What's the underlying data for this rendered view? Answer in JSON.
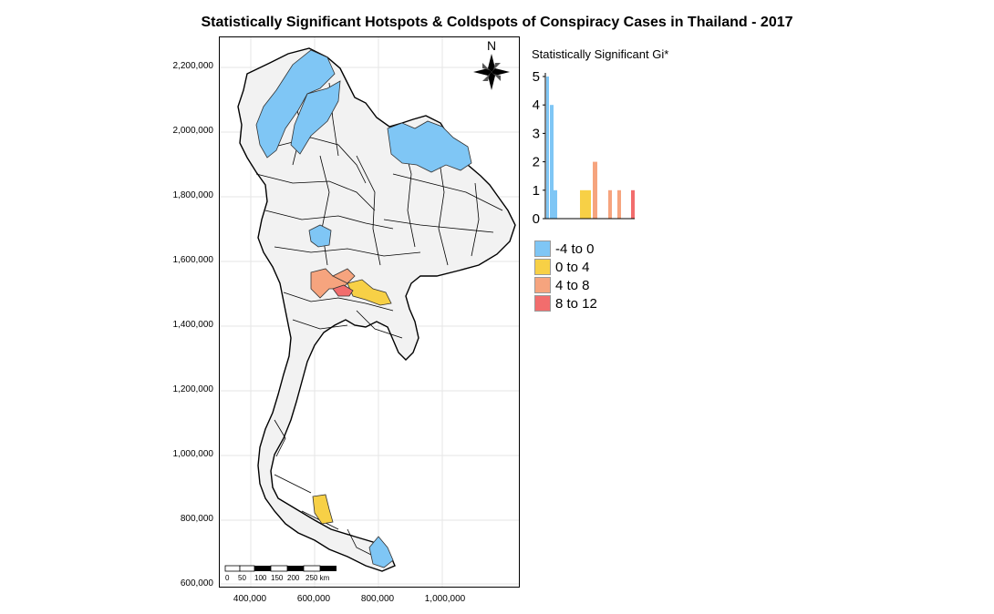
{
  "title": "Statistically Significant Hotspots & Coldspots of Conspiracy Cases in Thailand - 2017",
  "map": {
    "y_ticks": [
      "2,200,000",
      "2,000,000",
      "1,800,000",
      "1,600,000",
      "1,400,000",
      "1,200,000",
      "1,000,000",
      "800,000",
      "600,000"
    ],
    "x_ticks": [
      "400,000",
      "600,000",
      "800,000",
      "1,000,000"
    ],
    "north_label": "N",
    "scale_bar_labels": [
      "0",
      "50",
      "100",
      "150",
      "200",
      "250 km"
    ]
  },
  "histogram": {
    "title": "Statistically Significant Gi*",
    "y_ticks": [
      "0",
      "1",
      "2",
      "3",
      "4",
      "5"
    ]
  },
  "legend": {
    "items": [
      {
        "label": "-4 to 0",
        "color": "#7fc6f5"
      },
      {
        "label": "0 to 4",
        "color": "#f7d046"
      },
      {
        "label": "4 to 8",
        "color": "#f6a47e"
      },
      {
        "label": "8 to 12",
        "color": "#f26d6d"
      }
    ]
  },
  "colors": {
    "cold": "#7fc6f5",
    "warm": "#f7d046",
    "hot": "#f6a47e",
    "hottest": "#f26d6d",
    "province_fill": "#f2f2f2"
  },
  "chart_data": {
    "type": "bar",
    "title": "Statistically Significant Gi*",
    "ylim": [
      0,
      5
    ],
    "series": [
      {
        "values": [
          5,
          4,
          1
        ],
        "color": "#7fc6f5"
      },
      {
        "values": [
          1,
          1
        ],
        "color": "#f7d046"
      },
      {
        "values": [
          2,
          1,
          1
        ],
        "color": "#f6a47e"
      },
      {
        "values": [
          1
        ],
        "color": "#f26d6d"
      }
    ]
  }
}
